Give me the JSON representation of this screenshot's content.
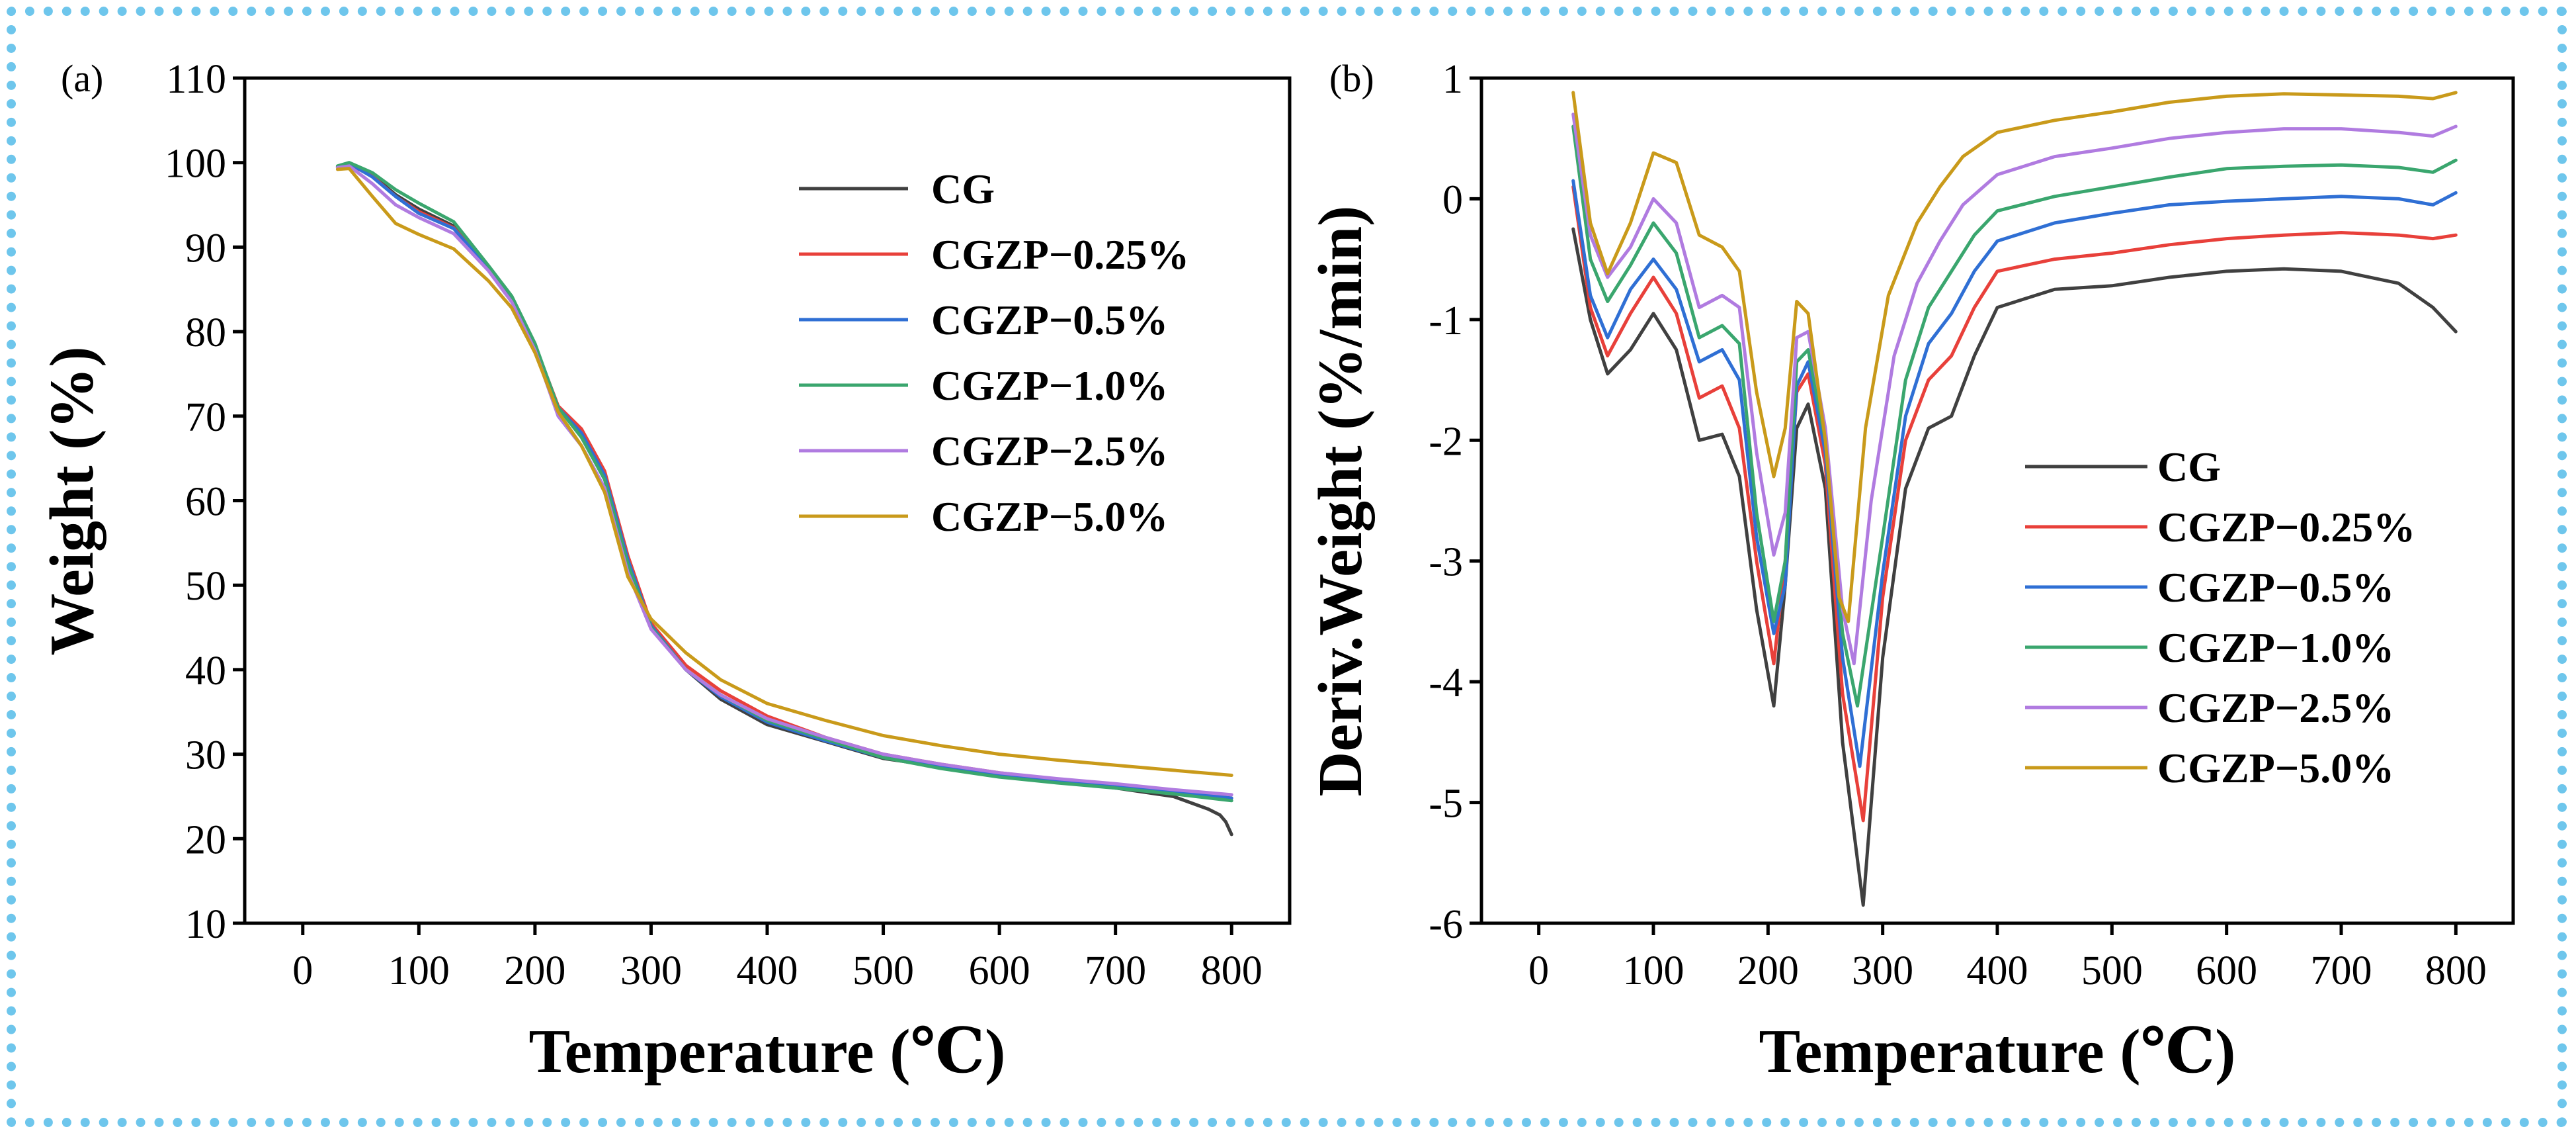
{
  "figure": {
    "border_color": "#6ec6ec"
  },
  "chart_data": [
    {
      "panel_label": "(a)",
      "type": "line",
      "title": "",
      "xlabel": "Temperature (℃)",
      "ylabel": "Weight (%)",
      "xlim": [
        -50,
        850
      ],
      "ylim": [
        10,
        110
      ],
      "xticks": [
        0,
        100,
        200,
        300,
        400,
        500,
        600,
        700,
        800
      ],
      "yticks": [
        10,
        20,
        30,
        40,
        50,
        60,
        70,
        80,
        90,
        100,
        110
      ],
      "legend_position": "top-right",
      "series": [
        {
          "name": "CG",
          "color": "#404040",
          "x": [
            30,
            40,
            60,
            80,
            100,
            130,
            160,
            180,
            200,
            220,
            240,
            260,
            280,
            300,
            330,
            360,
            400,
            450,
            500,
            550,
            600,
            650,
            700,
            750,
            780,
            790,
            795,
            800
          ],
          "y": [
            99.5,
            99.8,
            98.5,
            96.2,
            94.5,
            92.5,
            87.5,
            84,
            78.5,
            71,
            68,
            63,
            53,
            45,
            40,
            36.5,
            33.5,
            31.5,
            29.5,
            28.5,
            27.5,
            26.8,
            26,
            25,
            23.5,
            22.8,
            22,
            20.5
          ]
        },
        {
          "name": "CGZP−0.25%",
          "color": "#e8403a",
          "x": [
            30,
            40,
            60,
            80,
            100,
            130,
            160,
            180,
            200,
            220,
            240,
            260,
            280,
            300,
            330,
            360,
            400,
            450,
            500,
            550,
            600,
            650,
            700,
            750,
            800
          ],
          "y": [
            99.5,
            99.8,
            98.4,
            96,
            94.2,
            92.3,
            87.5,
            84,
            78.4,
            71.2,
            68.5,
            63.5,
            53.5,
            45.5,
            40.5,
            37.5,
            34.5,
            32,
            30,
            28.8,
            27.8,
            27,
            26.3,
            25.6,
            24.8
          ]
        },
        {
          "name": "CGZP−0.5%",
          "color": "#2f6fd4",
          "x": [
            30,
            40,
            60,
            80,
            100,
            130,
            160,
            180,
            200,
            220,
            240,
            260,
            280,
            300,
            330,
            360,
            400,
            450,
            500,
            550,
            600,
            650,
            700,
            750,
            800
          ],
          "y": [
            99.5,
            99.9,
            98.3,
            96,
            94,
            92.2,
            87.4,
            84,
            78.5,
            71,
            68,
            63,
            53,
            45.2,
            40,
            36.8,
            33.8,
            31.6,
            29.6,
            28.5,
            27.6,
            26.9,
            26.2,
            25.5,
            24.8
          ]
        },
        {
          "name": "CGZP−1.0%",
          "color": "#3aa66e",
          "x": [
            30,
            40,
            60,
            80,
            100,
            130,
            160,
            180,
            200,
            220,
            240,
            260,
            280,
            300,
            330,
            360,
            400,
            450,
            500,
            550,
            600,
            650,
            700,
            750,
            800
          ],
          "y": [
            99.6,
            100,
            98.8,
            96.8,
            95.2,
            93,
            87.8,
            84.2,
            78.6,
            71,
            67.5,
            62.5,
            52.5,
            45,
            40,
            37,
            34,
            31.8,
            29.6,
            28.3,
            27.3,
            26.6,
            26,
            25.3,
            24.5
          ]
        },
        {
          "name": "CGZP−2.5%",
          "color": "#b07be0",
          "x": [
            30,
            40,
            60,
            80,
            100,
            130,
            160,
            180,
            200,
            220,
            240,
            260,
            280,
            300,
            330,
            360,
            400,
            450,
            500,
            550,
            600,
            650,
            700,
            750,
            800
          ],
          "y": [
            99.4,
            99.6,
            97.5,
            95,
            93.5,
            91.6,
            87.2,
            83.5,
            77.8,
            70,
            66.5,
            61.5,
            51.5,
            44.8,
            40,
            37,
            34.2,
            32,
            30,
            28.8,
            27.8,
            27.1,
            26.5,
            25.8,
            25.2
          ]
        },
        {
          "name": "CGZP−5.0%",
          "color": "#c99a1a",
          "x": [
            30,
            40,
            60,
            80,
            100,
            130,
            160,
            180,
            200,
            220,
            240,
            260,
            280,
            300,
            330,
            360,
            400,
            450,
            500,
            550,
            600,
            650,
            700,
            750,
            800
          ],
          "y": [
            99.2,
            99.3,
            96,
            92.8,
            91.5,
            89.8,
            86,
            82.8,
            77.5,
            70.5,
            66.5,
            61,
            51,
            46,
            42,
            38.8,
            36,
            34,
            32.2,
            31,
            30,
            29.3,
            28.7,
            28.1,
            27.5
          ]
        }
      ]
    },
    {
      "panel_label": "(b)",
      "type": "line",
      "title": "",
      "xlabel": "Temperature (℃)",
      "ylabel": "Deriv.Weight (%/min)",
      "xlim": [
        -50,
        850
      ],
      "ylim": [
        -6,
        1
      ],
      "xticks": [
        0,
        100,
        200,
        300,
        400,
        500,
        600,
        700,
        800
      ],
      "yticks": [
        -6,
        -5,
        -4,
        -3,
        -2,
        -1,
        0,
        1
      ],
      "legend_position": "bottom-right",
      "series": [
        {
          "name": "CG",
          "color": "#404040",
          "x": [
            30,
            45,
            60,
            80,
            100,
            120,
            140,
            160,
            175,
            190,
            205,
            215,
            225,
            235,
            250,
            265,
            283,
            300,
            320,
            340,
            360,
            380,
            400,
            450,
            500,
            550,
            600,
            650,
            700,
            750,
            780,
            800
          ],
          "y": [
            -0.25,
            -1.0,
            -1.45,
            -1.25,
            -0.95,
            -1.25,
            -2.0,
            -1.95,
            -2.3,
            -3.4,
            -4.2,
            -3.2,
            -1.9,
            -1.7,
            -2.4,
            -4.5,
            -5.85,
            -3.8,
            -2.4,
            -1.9,
            -1.8,
            -1.3,
            -0.9,
            -0.75,
            -0.72,
            -0.65,
            -0.6,
            -0.58,
            -0.6,
            -0.7,
            -0.9,
            -1.1
          ]
        },
        {
          "name": "CGZP−0.25%",
          "color": "#e8403a",
          "x": [
            30,
            45,
            60,
            80,
            100,
            120,
            140,
            160,
            175,
            190,
            205,
            215,
            225,
            235,
            250,
            265,
            283,
            300,
            320,
            340,
            360,
            380,
            400,
            450,
            500,
            550,
            600,
            650,
            700,
            750,
            780,
            800
          ],
          "y": [
            0.1,
            -0.9,
            -1.3,
            -0.95,
            -0.65,
            -0.95,
            -1.65,
            -1.55,
            -1.9,
            -3.0,
            -3.85,
            -3.0,
            -1.6,
            -1.45,
            -2.2,
            -4.1,
            -5.15,
            -3.3,
            -2.0,
            -1.5,
            -1.3,
            -0.9,
            -0.6,
            -0.5,
            -0.45,
            -0.38,
            -0.33,
            -0.3,
            -0.28,
            -0.3,
            -0.33,
            -0.3
          ]
        },
        {
          "name": "CGZP−0.5%",
          "color": "#2f6fd4",
          "x": [
            30,
            45,
            60,
            80,
            100,
            120,
            140,
            160,
            175,
            190,
            205,
            215,
            225,
            235,
            250,
            265,
            280,
            300,
            320,
            340,
            360,
            380,
            400,
            450,
            500,
            550,
            600,
            650,
            700,
            750,
            780,
            800
          ],
          "y": [
            0.15,
            -0.8,
            -1.15,
            -0.75,
            -0.5,
            -0.75,
            -1.35,
            -1.25,
            -1.5,
            -2.8,
            -3.6,
            -3.2,
            -1.55,
            -1.35,
            -2.1,
            -3.8,
            -4.7,
            -3.1,
            -1.8,
            -1.2,
            -0.95,
            -0.6,
            -0.35,
            -0.2,
            -0.12,
            -0.05,
            -0.02,
            0.0,
            0.02,
            0.0,
            -0.05,
            0.05
          ]
        },
        {
          "name": "CGZP−1.0%",
          "color": "#3aa66e",
          "x": [
            30,
            45,
            60,
            80,
            100,
            120,
            140,
            160,
            175,
            190,
            205,
            215,
            225,
            235,
            250,
            265,
            278,
            300,
            320,
            340,
            360,
            380,
            400,
            450,
            500,
            550,
            600,
            650,
            700,
            750,
            780,
            800
          ],
          "y": [
            0.6,
            -0.5,
            -0.85,
            -0.55,
            -0.2,
            -0.45,
            -1.15,
            -1.05,
            -1.2,
            -2.6,
            -3.5,
            -3.0,
            -1.35,
            -1.25,
            -2.0,
            -3.6,
            -4.2,
            -2.8,
            -1.5,
            -0.9,
            -0.6,
            -0.3,
            -0.1,
            0.02,
            0.1,
            0.18,
            0.25,
            0.27,
            0.28,
            0.26,
            0.22,
            0.32
          ]
        },
        {
          "name": "CGZP−2.5%",
          "color": "#b07be0",
          "x": [
            30,
            45,
            60,
            80,
            100,
            120,
            140,
            160,
            175,
            190,
            205,
            215,
            225,
            235,
            250,
            265,
            275,
            290,
            310,
            330,
            350,
            370,
            400,
            450,
            500,
            550,
            600,
            650,
            700,
            750,
            780,
            800
          ],
          "y": [
            0.7,
            -0.3,
            -0.65,
            -0.4,
            0.0,
            -0.2,
            -0.9,
            -0.8,
            -0.9,
            -2.1,
            -2.95,
            -2.6,
            -1.15,
            -1.1,
            -1.9,
            -3.4,
            -3.85,
            -2.5,
            -1.3,
            -0.7,
            -0.35,
            -0.05,
            0.2,
            0.35,
            0.42,
            0.5,
            0.55,
            0.58,
            0.58,
            0.55,
            0.52,
            0.6
          ]
        },
        {
          "name": "CGZP−5.0%",
          "color": "#c99a1a",
          "x": [
            30,
            45,
            60,
            80,
            100,
            120,
            140,
            160,
            175,
            190,
            205,
            215,
            225,
            235,
            250,
            262,
            270,
            285,
            305,
            330,
            350,
            370,
            400,
            450,
            500,
            550,
            600,
            650,
            700,
            750,
            780,
            800
          ],
          "y": [
            0.88,
            -0.2,
            -0.62,
            -0.2,
            0.38,
            0.3,
            -0.3,
            -0.4,
            -0.6,
            -1.6,
            -2.3,
            -1.9,
            -0.85,
            -0.95,
            -2.0,
            -3.3,
            -3.5,
            -1.9,
            -0.8,
            -0.2,
            0.1,
            0.35,
            0.55,
            0.65,
            0.72,
            0.8,
            0.85,
            0.87,
            0.86,
            0.85,
            0.83,
            0.88
          ]
        }
      ]
    }
  ]
}
